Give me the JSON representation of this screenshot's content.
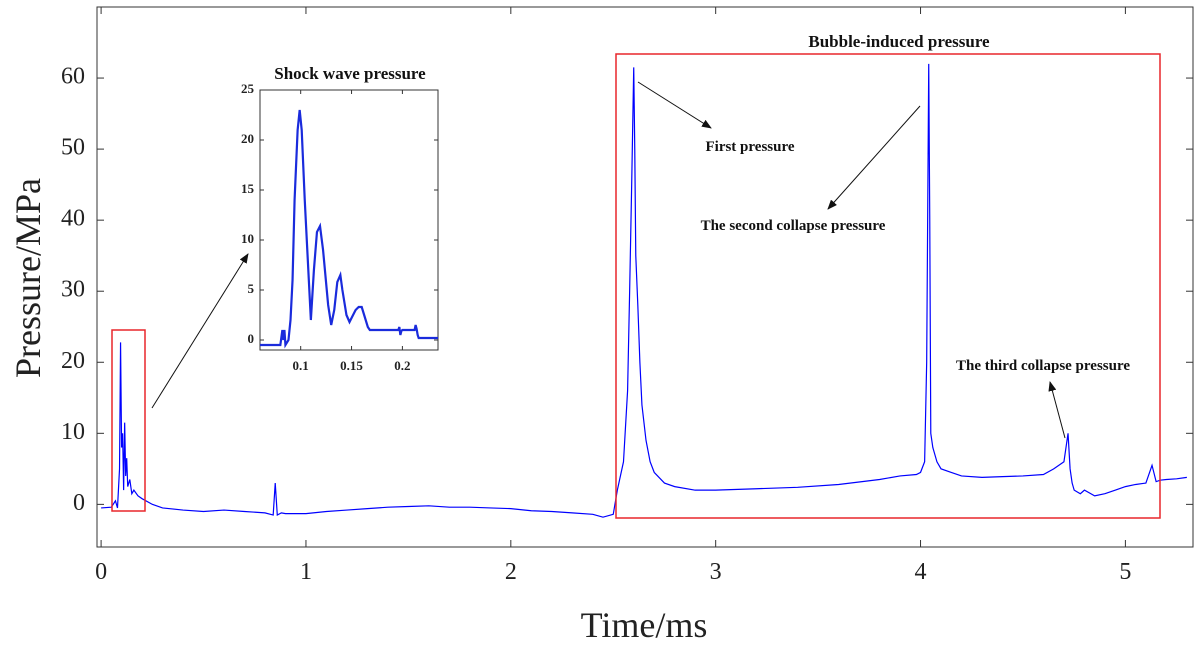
{
  "chart_data": [
    {
      "type": "line",
      "xlabel": "Time/ms",
      "ylabel": "Pressure/MPa",
      "xlim": [
        -0.02,
        5.33
      ],
      "ylim": [
        -6,
        70
      ],
      "xticks": [
        0,
        1,
        2,
        3,
        4,
        5
      ],
      "yticks": [
        0,
        10,
        20,
        30,
        40,
        50,
        60
      ],
      "grid": false,
      "line_color": "#0000ff",
      "series": [
        {
          "x": [
            0.0,
            0.05,
            0.07,
            0.08,
            0.09,
            0.095,
            0.1,
            0.105,
            0.11,
            0.115,
            0.12,
            0.125,
            0.13,
            0.14,
            0.15,
            0.16,
            0.18,
            0.2,
            0.25,
            0.3,
            0.4,
            0.5,
            0.6,
            0.7,
            0.8,
            0.84,
            0.85,
            0.86,
            0.88,
            0.9,
            1.0,
            1.1,
            1.2,
            1.3,
            1.4,
            1.5,
            1.6,
            1.7,
            1.8,
            1.9,
            2.0,
            2.1,
            2.2,
            2.3,
            2.4,
            2.45,
            2.5,
            2.52,
            2.55,
            2.57,
            2.58,
            2.59,
            2.6,
            2.605,
            2.61,
            2.62,
            2.63,
            2.64,
            2.66,
            2.68,
            2.7,
            2.75,
            2.8,
            2.9,
            3.0,
            3.2,
            3.4,
            3.6,
            3.8,
            3.9,
            3.98,
            4.0,
            4.02,
            4.03,
            4.04,
            4.045,
            4.05,
            4.06,
            4.08,
            4.1,
            4.15,
            4.2,
            4.3,
            4.4,
            4.5,
            4.6,
            4.65,
            4.7,
            4.72,
            4.73,
            4.74,
            4.75,
            4.78,
            4.8,
            4.85,
            4.9,
            4.95,
            5.0,
            5.05,
            5.1,
            5.13,
            5.15,
            5.17,
            5.2,
            5.25,
            5.3
          ],
          "y": [
            -0.5,
            -0.4,
            0.5,
            -0.5,
            5,
            22.8,
            8,
            10,
            2,
            11.5,
            4,
            6.5,
            2.5,
            3.5,
            1.5,
            2,
            1.2,
            0.8,
            0,
            -0.5,
            -0.8,
            -1,
            -0.8,
            -1,
            -1.2,
            -1.5,
            3,
            -1.5,
            -1.2,
            -1.3,
            -1.3,
            -1,
            -0.8,
            -0.6,
            -0.4,
            -0.3,
            -0.2,
            -0.4,
            -0.4,
            -0.5,
            -0.6,
            -0.9,
            -1,
            -1.2,
            -1.4,
            -1.8,
            -1.4,
            2,
            6,
            16,
            30,
            45,
            61.5,
            50,
            35,
            28,
            20,
            14,
            9,
            6,
            4.5,
            3,
            2.5,
            2,
            2,
            2.2,
            2.4,
            2.8,
            3.5,
            4,
            4.2,
            4.5,
            6,
            20,
            62,
            40,
            10,
            8,
            6,
            5,
            4.5,
            4,
            3.8,
            3.9,
            4,
            4.2,
            5,
            6,
            10,
            5,
            3,
            2,
            1.5,
            2,
            1.2,
            1.5,
            2,
            2.5,
            2.8,
            3,
            5.5,
            3.2,
            3.4,
            3.5,
            3.6,
            3.8
          ]
        }
      ],
      "annotations": [
        {
          "text": "Bubble-induced pressure"
        },
        {
          "text": "First pressure"
        },
        {
          "text": "The second collapse pressure"
        },
        {
          "text": "The third collapse pressure"
        }
      ]
    },
    {
      "type": "line",
      "title": "Shock wave pressure",
      "xlim": [
        0.06,
        0.235
      ],
      "ylim": [
        -1,
        25
      ],
      "xticks": [
        0.1,
        0.15,
        0.2
      ],
      "xtick_labels": [
        "0.1",
        "0.15",
        "0.2"
      ],
      "yticks": [
        0,
        5,
        10,
        15,
        20,
        25
      ],
      "grid": false,
      "line_color": "#1a2bdc",
      "series": [
        {
          "x": [
            0.06,
            0.08,
            0.082,
            0.083,
            0.084,
            0.085,
            0.088,
            0.09,
            0.092,
            0.094,
            0.097,
            0.099,
            0.101,
            0.104,
            0.108,
            0.11,
            0.113,
            0.116,
            0.119,
            0.122,
            0.127,
            0.13,
            0.133,
            0.136,
            0.139,
            0.141,
            0.145,
            0.148,
            0.15,
            0.154,
            0.157,
            0.16,
            0.163,
            0.166,
            0.168,
            0.18,
            0.196,
            0.197,
            0.198,
            0.199,
            0.2,
            0.212,
            0.213,
            0.214,
            0.215,
            0.216,
            0.222,
            0.236
          ],
          "y": [
            -0.5,
            -0.5,
            1,
            0,
            1,
            -0.5,
            0,
            2,
            6,
            14,
            21,
            23,
            21,
            14,
            6,
            2,
            7,
            10.8,
            11.4,
            9,
            3.5,
            1.5,
            3,
            5.8,
            6.5,
            5,
            2.5,
            1.8,
            2.2,
            3,
            3.3,
            3.3,
            2.3,
            1.3,
            1,
            1,
            1,
            1.3,
            0.5,
            0.9,
            1,
            1,
            1.5,
            1.1,
            0.5,
            0.2,
            0.2,
            0.2
          ]
        }
      ]
    }
  ]
}
